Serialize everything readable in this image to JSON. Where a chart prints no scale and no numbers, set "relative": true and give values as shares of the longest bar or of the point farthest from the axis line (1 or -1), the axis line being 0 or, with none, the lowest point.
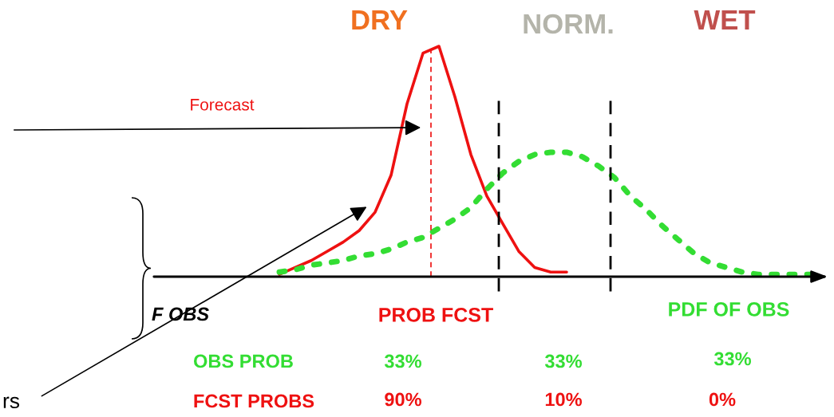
{
  "chart_data": {
    "type": "line",
    "relative": true,
    "marker": "none",
    "categories": [
      null,
      null,
      null,
      null,
      null,
      null,
      null,
      null,
      null,
      null,
      null,
      null,
      null,
      null,
      null,
      null,
      null,
      null,
      null,
      null,
      null,
      null,
      null,
      null,
      null,
      null,
      null,
      null,
      null,
      null,
      null,
      null,
      null,
      null,
      null,
      null
    ],
    "series": [
      {
        "color": "#ee1111",
        "line_style": "solid",
        "values": [
          null,
          0.01,
          0.04,
          0.07,
          0.11,
          0.15,
          0.2,
          0.28,
          0.44,
          0.75,
          0.97,
          1.0,
          0.78,
          0.53,
          0.35,
          0.23,
          0.11,
          0.04,
          0.02,
          0.02,
          null,
          null,
          null,
          null,
          null,
          null,
          null,
          null,
          null,
          null,
          null,
          null,
          null,
          null,
          null,
          null
        ]
      },
      {
        "color": "#33dd33",
        "line_style": "dotted",
        "values": [
          null,
          0.02,
          0.03,
          0.05,
          0.06,
          0.07,
          0.09,
          0.1,
          0.12,
          0.15,
          0.17,
          0.21,
          0.25,
          0.3,
          0.38,
          0.45,
          0.5,
          0.53,
          0.54,
          0.54,
          0.52,
          0.48,
          0.43,
          0.35,
          0.29,
          0.22,
          0.16,
          0.1,
          0.06,
          0.04,
          0.02,
          0.01,
          0.01,
          0.01,
          0.01,
          0.01
        ]
      }
    ],
    "annotations": [
      "DRY",
      "NORM.",
      "WET",
      "Forecast",
      "F OBS",
      "PROB FCST",
      "PDF OF OBS",
      "OBS PROB",
      "33%",
      "33%",
      "33%",
      "FCST PROBS",
      "90%",
      "10%",
      "0%",
      "rs"
    ]
  }
}
